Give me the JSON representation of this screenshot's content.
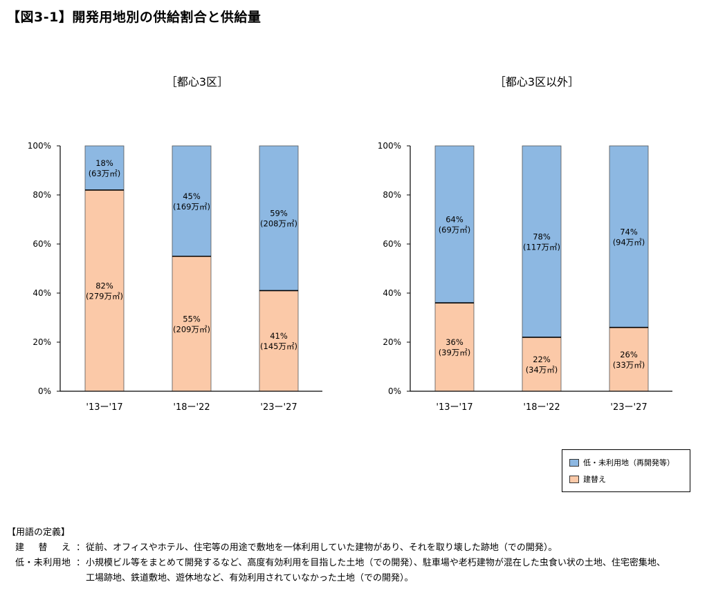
{
  "figure_title": "【図3-1】開発用地別の供給割合と供給量",
  "colors": {
    "low_unused": "#8db8e2",
    "rebuild": "#fbc9a8",
    "axis": "#000000"
  },
  "legend": {
    "items": [
      {
        "label": "低・未利用地（再開発等）",
        "color": "#8db8e2"
      },
      {
        "label": "建替え",
        "color": "#fbc9a8"
      }
    ]
  },
  "chart_data": [
    {
      "type": "bar",
      "stacked": true,
      "title": "［都心3区］",
      "categories": [
        "'13ー'17",
        "'18ー'22",
        "'23ー'27"
      ],
      "ylim": [
        0,
        100
      ],
      "yticks": [
        "0%",
        "20%",
        "40%",
        "60%",
        "80%",
        "100%"
      ],
      "series": [
        {
          "name": "建替え",
          "values": [
            82,
            55,
            41
          ],
          "labels": [
            "82%\n(279万㎡)",
            "55%\n(209万㎡)",
            "41%\n(145万㎡)"
          ]
        },
        {
          "name": "低・未利用地（再開発等）",
          "values": [
            18,
            45,
            59
          ],
          "labels": [
            "18%\n(63万㎡)",
            "45%\n(169万㎡)",
            "59%\n(208万㎡)"
          ]
        }
      ]
    },
    {
      "type": "bar",
      "stacked": true,
      "title": "［都心3区以外］",
      "categories": [
        "'13ー'17",
        "'18ー'22",
        "'23ー'27"
      ],
      "ylim": [
        0,
        100
      ],
      "yticks": [
        "0%",
        "20%",
        "40%",
        "60%",
        "80%",
        "100%"
      ],
      "series": [
        {
          "name": "建替え",
          "values": [
            36,
            22,
            26
          ],
          "labels": [
            "36%\n(39万㎡)",
            "22%\n(34万㎡)",
            "26%\n(33万㎡)"
          ]
        },
        {
          "name": "低・未利用地（再開発等）",
          "values": [
            64,
            78,
            74
          ],
          "labels": [
            "64%\n(69万㎡)",
            "78%\n(117万㎡)",
            "74%\n(94万㎡)"
          ]
        }
      ]
    }
  ],
  "definitions": {
    "heading": "【用語の定義】",
    "items": [
      {
        "term": "建替え",
        "sep": "：",
        "lines": [
          "従前、オフィスやホテル、住宅等の用途で敷地を一体利用していた建物があり、それを取り壊した跡地（での開発）。"
        ]
      },
      {
        "term": "低・未利用地",
        "sep": "：",
        "lines": [
          "小規模ビル等をまとめて開発するなど、高度有効利用を目指した土地（での開発）、駐車場や老朽建物が混在した虫食い状の土地、住宅密集地、",
          "工場跡地、鉄道敷地、遊休地など、有効利用されていなかった土地（での開発）。"
        ]
      }
    ]
  }
}
